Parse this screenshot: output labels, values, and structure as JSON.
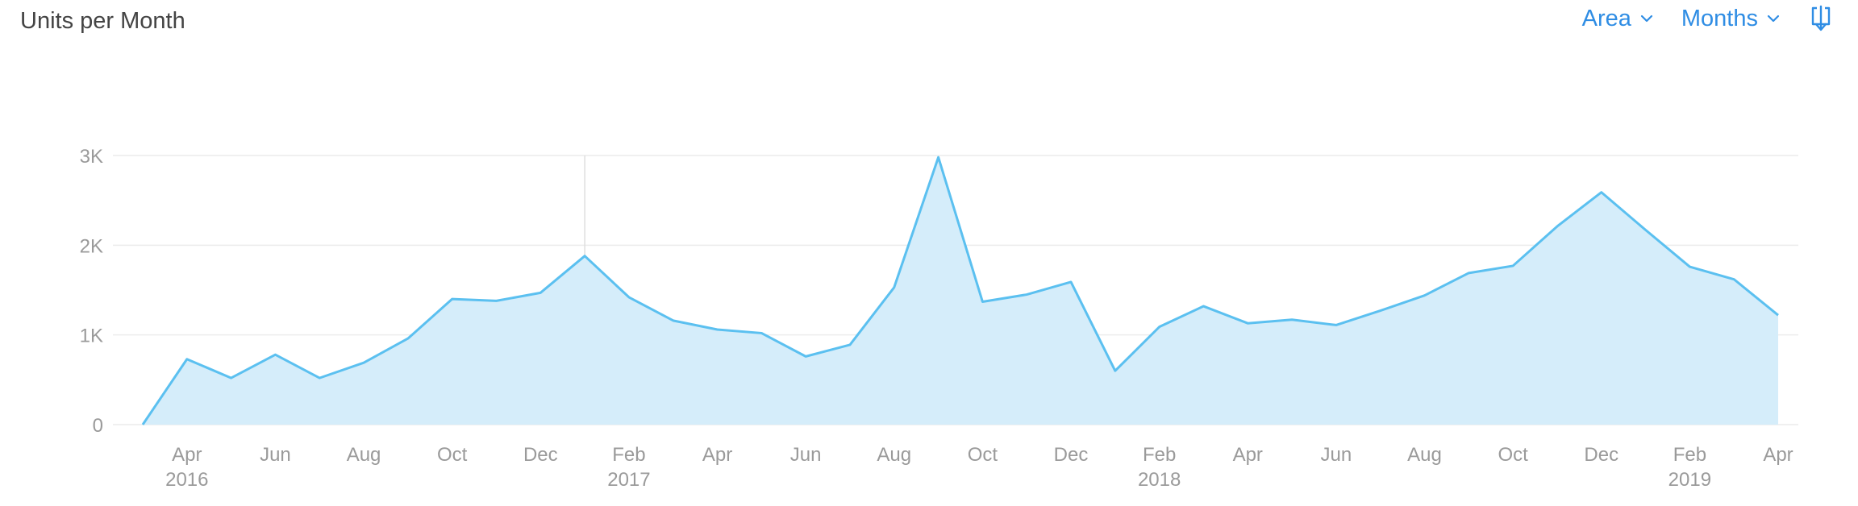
{
  "header": {
    "title": "Units per Month",
    "chart_type_select": "Area",
    "period_select": "Months"
  },
  "icons": {
    "chart_type_chevron": "chevron-down-icon",
    "period_chevron": "chevron-down-icon",
    "download": "download-icon"
  },
  "colors": {
    "accent": "#2f8de4",
    "series_line": "#5bc0f0",
    "series_fill": "#d5edfa",
    "grid": "#ececec",
    "tick_text": "#9a9a9a",
    "title_text": "#444444"
  },
  "chart_data": {
    "type": "area",
    "x": [
      "2016-03",
      "2016-04",
      "2016-05",
      "2016-06",
      "2016-07",
      "2016-08",
      "2016-09",
      "2016-10",
      "2016-11",
      "2016-12",
      "2017-01",
      "2017-02",
      "2017-03",
      "2017-04",
      "2017-05",
      "2017-06",
      "2017-07",
      "2017-08",
      "2017-09",
      "2017-10",
      "2017-11",
      "2017-12",
      "2018-01",
      "2018-02",
      "2018-03",
      "2018-04",
      "2018-05",
      "2018-06",
      "2018-07",
      "2018-08",
      "2018-09",
      "2018-10",
      "2018-11",
      "2018-12",
      "2019-01",
      "2019-02",
      "2019-03",
      "2019-04"
    ],
    "series": [
      {
        "values": [
          0,
          730,
          520,
          780,
          520,
          690,
          960,
          1400,
          1380,
          1470,
          1880,
          1420,
          1160,
          1060,
          1020,
          760,
          890,
          1530,
          2980,
          1370,
          1450,
          1590,
          600,
          1090,
          1320,
          1130,
          1170,
          1110,
          1270,
          1440,
          1690,
          1770,
          2210,
          2590,
          2170,
          1760,
          1620,
          1220
        ]
      }
    ],
    "ylim": [
      0,
      3000
    ],
    "yticks": [
      {
        "value": 0,
        "label": "0"
      },
      {
        "value": 1000,
        "label": "1K"
      },
      {
        "value": 2000,
        "label": "2K"
      },
      {
        "value": 3000,
        "label": "3K"
      }
    ],
    "xticks": [
      {
        "x": "2016-04",
        "label": "Apr",
        "year": "2016"
      },
      {
        "x": "2016-06",
        "label": "Jun",
        "year": ""
      },
      {
        "x": "2016-08",
        "label": "Aug",
        "year": ""
      },
      {
        "x": "2016-10",
        "label": "Oct",
        "year": ""
      },
      {
        "x": "2016-12",
        "label": "Dec",
        "year": ""
      },
      {
        "x": "2017-02",
        "label": "Feb",
        "year": "2017"
      },
      {
        "x": "2017-04",
        "label": "Apr",
        "year": ""
      },
      {
        "x": "2017-06",
        "label": "Jun",
        "year": ""
      },
      {
        "x": "2017-08",
        "label": "Aug",
        "year": ""
      },
      {
        "x": "2017-10",
        "label": "Oct",
        "year": ""
      },
      {
        "x": "2017-12",
        "label": "Dec",
        "year": ""
      },
      {
        "x": "2018-02",
        "label": "Feb",
        "year": "2018"
      },
      {
        "x": "2018-04",
        "label": "Apr",
        "year": ""
      },
      {
        "x": "2018-06",
        "label": "Jun",
        "year": ""
      },
      {
        "x": "2018-08",
        "label": "Aug",
        "year": ""
      },
      {
        "x": "2018-10",
        "label": "Oct",
        "year": ""
      },
      {
        "x": "2018-12",
        "label": "Dec",
        "year": ""
      },
      {
        "x": "2019-02",
        "label": "Feb",
        "year": "2019"
      },
      {
        "x": "2019-04",
        "label": "Apr",
        "year": ""
      }
    ],
    "grid": true,
    "year_divider_at": "2017-01",
    "legend": "none"
  }
}
